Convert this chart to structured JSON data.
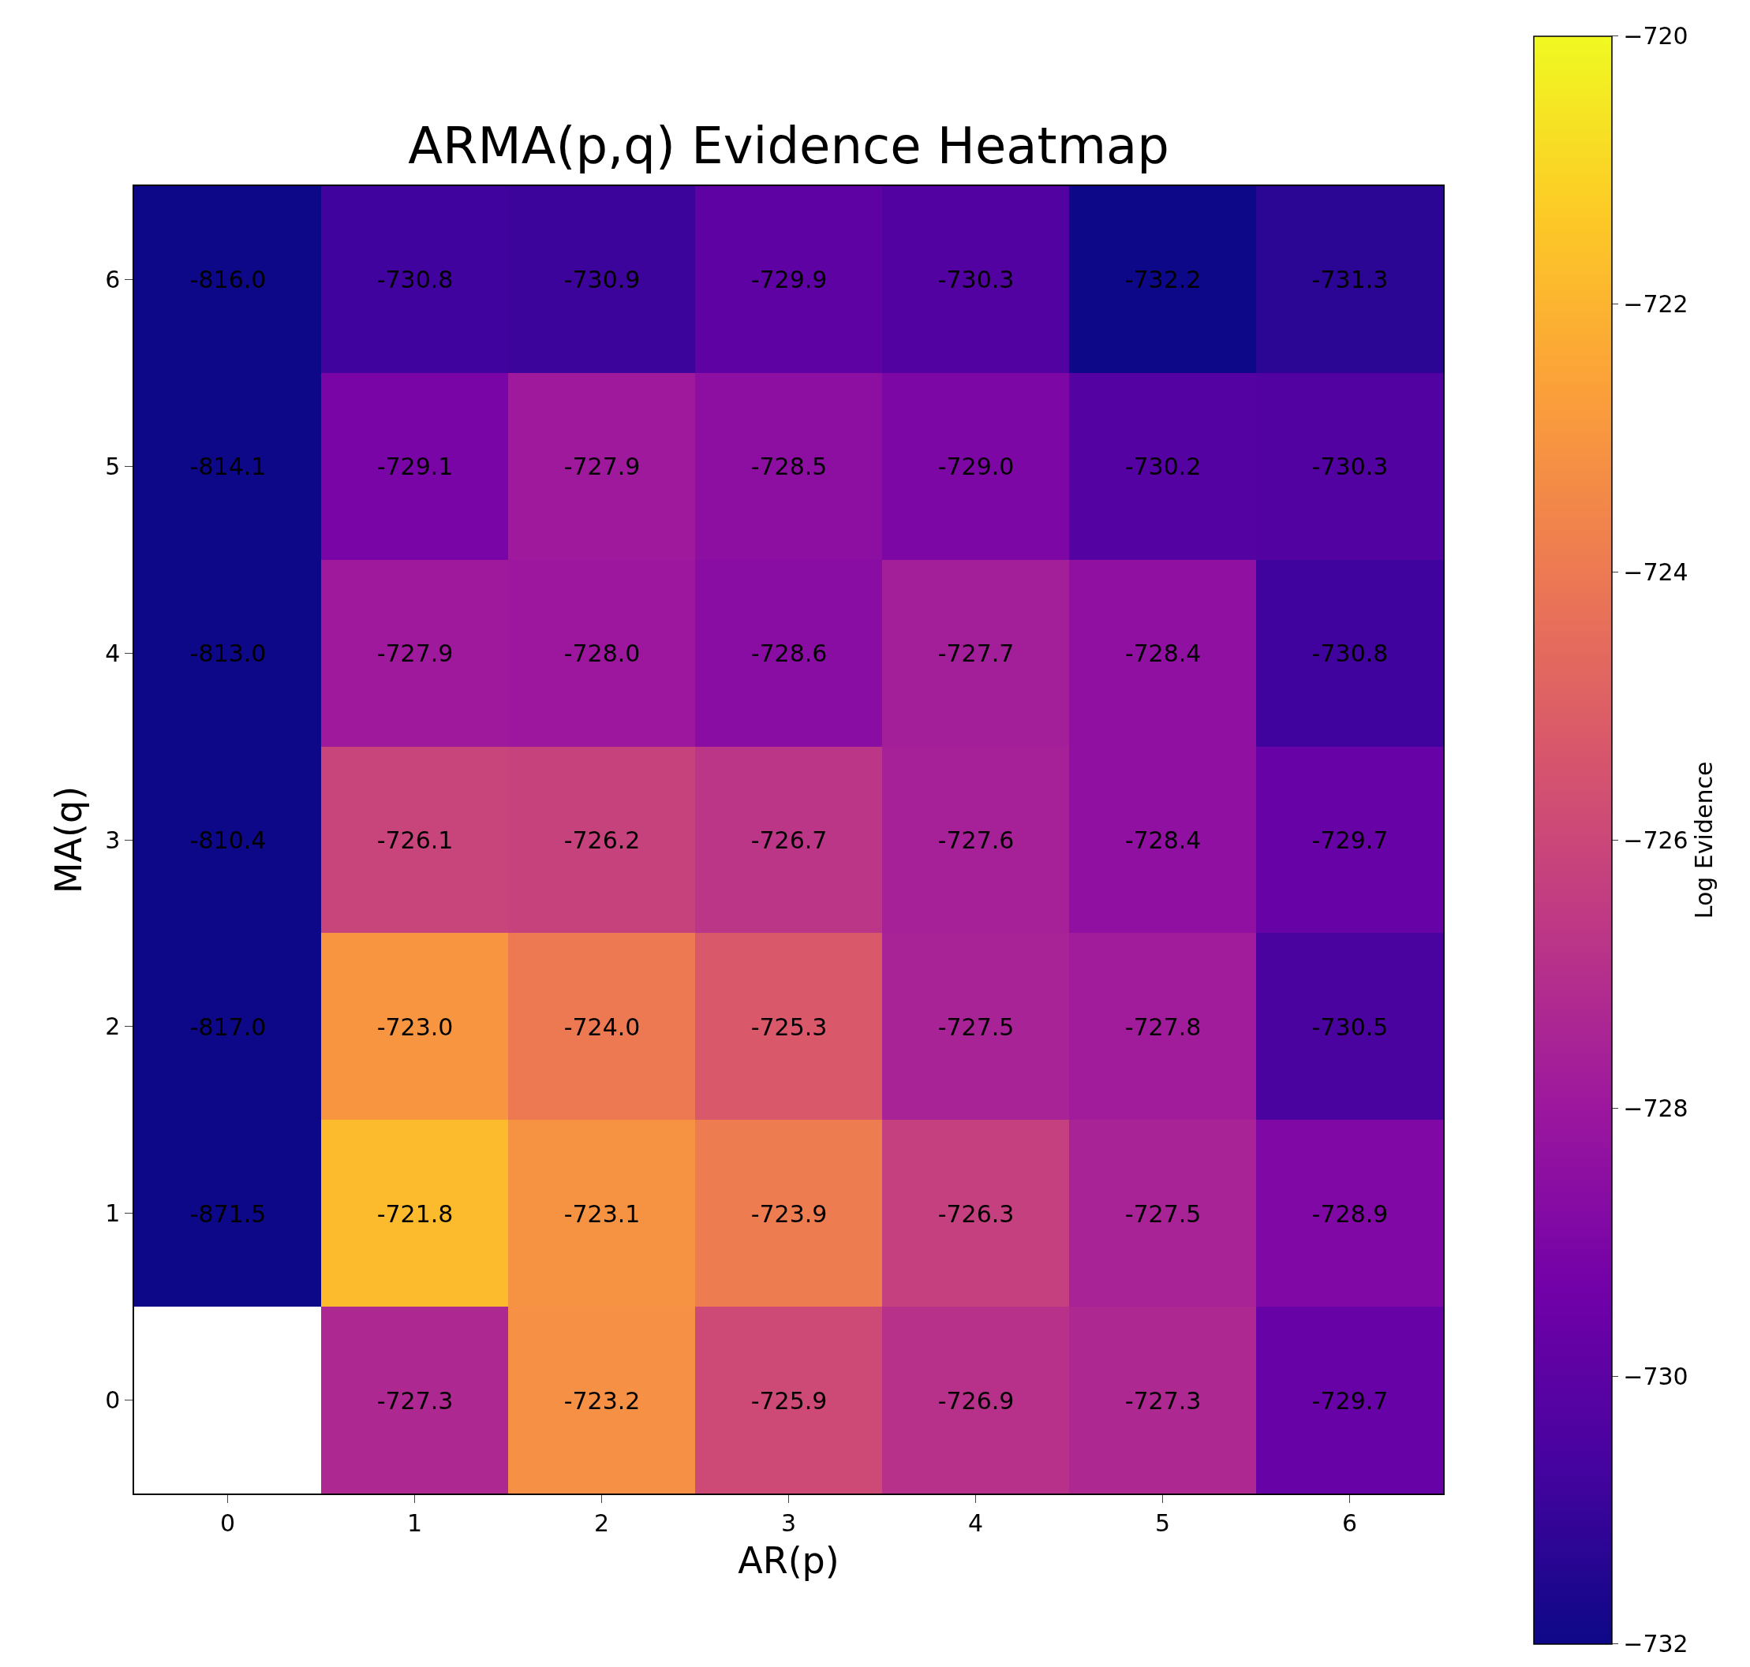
{
  "chart_data": {
    "type": "heatmap",
    "title": "ARMA(p,q) Evidence Heatmap",
    "xlabel": "AR(p)",
    "ylabel": "MA(q)",
    "clabel": "Log Evidence",
    "categories": [
      "0",
      "1",
      "2",
      "3",
      "4",
      "5",
      "6"
    ],
    "y_categories": [
      "6",
      "5",
      "4",
      "3",
      "2",
      "1",
      "0"
    ],
    "cells": [
      [
        -816.0,
        -730.8,
        -730.9,
        -729.9,
        -730.3,
        -732.2,
        -731.3
      ],
      [
        -814.1,
        -729.1,
        -727.9,
        -728.5,
        -729.0,
        -730.2,
        -730.3
      ],
      [
        -813.0,
        -727.9,
        -728.0,
        -728.6,
        -727.7,
        -728.4,
        -730.8
      ],
      [
        -810.4,
        -726.1,
        -726.2,
        -726.7,
        -727.6,
        -728.4,
        -729.7
      ],
      [
        -817.0,
        -723.0,
        -724.0,
        -725.3,
        -727.5,
        -727.8,
        -730.5
      ],
      [
        -871.5,
        -721.8,
        -723.1,
        -723.9,
        -726.3,
        -727.5,
        -728.9
      ],
      [
        null,
        -727.3,
        -723.2,
        -725.9,
        -726.9,
        -727.3,
        -729.7
      ]
    ],
    "clim": [
      -732,
      -720
    ],
    "cticks": [
      {
        "value": -732,
        "label": "−732"
      },
      {
        "value": -730,
        "label": "−730"
      },
      {
        "value": -728,
        "label": "−728"
      },
      {
        "value": -726,
        "label": "−726"
      },
      {
        "value": -724,
        "label": "−724"
      },
      {
        "value": -722,
        "label": "−722"
      },
      {
        "value": -720,
        "label": "−720"
      }
    ],
    "cell_labels": [
      [
        "-816.0",
        "-730.8",
        "-730.9",
        "-729.9",
        "-730.3",
        "-732.2",
        "-731.3"
      ],
      [
        "-814.1",
        "-729.1",
        "-727.9",
        "-728.5",
        "-729.0",
        "-730.2",
        "-730.3"
      ],
      [
        "-813.0",
        "-727.9",
        "-728.0",
        "-728.6",
        "-727.7",
        "-728.4",
        "-730.8"
      ],
      [
        "-810.4",
        "-726.1",
        "-726.2",
        "-726.7",
        "-727.6",
        "-728.4",
        "-729.7"
      ],
      [
        "-817.0",
        "-723.0",
        "-724.0",
        "-725.3",
        "-727.5",
        "-727.8",
        "-730.5"
      ],
      [
        "-871.5",
        "-721.8",
        "-723.1",
        "-723.9",
        "-726.3",
        "-727.5",
        "-728.9"
      ],
      [
        null,
        "-727.3",
        "-723.2",
        "-725.9",
        "-726.9",
        "-727.3",
        "-729.7"
      ]
    ]
  }
}
